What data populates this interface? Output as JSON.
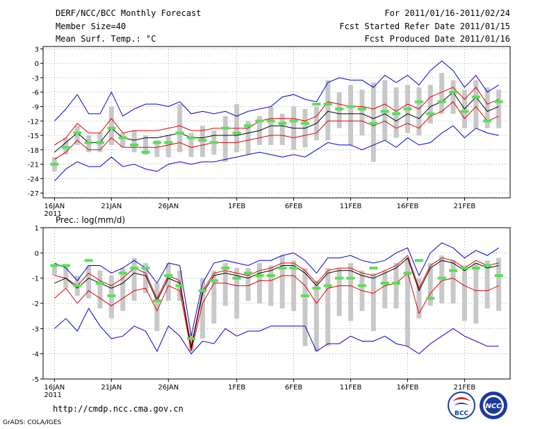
{
  "header": {
    "line1_left": "DERF/NCC/BCC Monthly Forecast",
    "line2_left": "Member Size=40",
    "line3_left": "Mean Surf. Temp.: °C",
    "line1_right": "For 2011/01/16-2011/02/24",
    "line2_right": "Fcst Started Refer Date 2011/01/15",
    "line3_right": "Fcst Produced Date 2011/01/16"
  },
  "footer": {
    "url": "http://cmdp.ncc.cma.gov.cn",
    "credit": "GrADS: COLA/IGES",
    "logo_bcc": "BCC",
    "logo_ncc": "NCC"
  },
  "colors": {
    "envelope": "#0000d0",
    "percentile": "#e00000",
    "mean": "#000000",
    "observed": "#55e055",
    "box": "#c8c8c8",
    "grid": "#909090"
  },
  "chart_data": [
    {
      "type": "line",
      "title": "Mean Surf. Temp.: °C",
      "xlabel": "",
      "ylabel": "",
      "ylim": [
        -28,
        3.5
      ],
      "yticks": [
        3,
        0,
        -3,
        -6,
        -9,
        -12,
        -15,
        -18,
        -21,
        -24,
        -27
      ],
      "xticks": [
        {
          "day": 1,
          "label": "16JAN",
          "sub": "2011"
        },
        {
          "day": 6,
          "label": "21JAN",
          "sub": ""
        },
        {
          "day": 11,
          "label": "26JAN",
          "sub": ""
        },
        {
          "day": 17,
          "label": "1FEB",
          "sub": ""
        },
        {
          "day": 22,
          "label": "6FEB",
          "sub": ""
        },
        {
          "day": 27,
          "label": "11FEB",
          "sub": ""
        },
        {
          "day": 32,
          "label": "16FEB",
          "sub": ""
        },
        {
          "day": 37,
          "label": "21FEB",
          "sub": ""
        }
      ],
      "days": [
        1,
        2,
        3,
        4,
        5,
        6,
        7,
        8,
        9,
        10,
        11,
        12,
        13,
        14,
        15,
        16,
        17,
        18,
        19,
        20,
        21,
        22,
        23,
        24,
        25,
        26,
        27,
        28,
        29,
        30,
        31,
        32,
        33,
        34,
        35,
        36,
        37,
        38,
        39,
        40
      ],
      "series": [
        {
          "name": "max",
          "role": "envelope",
          "values": [
            -12,
            -9.5,
            -6.5,
            -10.5,
            -10.5,
            -6,
            -11,
            -9.5,
            -8.5,
            -8.5,
            -9,
            -8,
            -10.5,
            -10,
            -10.5,
            -10,
            -11,
            -10,
            -9.5,
            -9,
            -7,
            -6.5,
            -7.5,
            -8,
            -4,
            -3,
            -3.5,
            -3.5,
            -5,
            -2.5,
            -4,
            -2.5,
            -4.5,
            -1.5,
            0.5,
            -1.5,
            -5,
            -2.5,
            -6,
            -4.5
          ]
        },
        {
          "name": "p75",
          "role": "percentile",
          "values": [
            -17,
            -15.5,
            -12.5,
            -14.5,
            -14.5,
            -11.5,
            -14.5,
            -14,
            -14,
            -14,
            -13.5,
            -13,
            -14,
            -14,
            -13.5,
            -13.5,
            -13.5,
            -13.5,
            -12,
            -11.5,
            -11.5,
            -11.5,
            -12,
            -11,
            -8,
            -8.5,
            -9,
            -9,
            -9.5,
            -8.5,
            -10,
            -8.5,
            -9.5,
            -7,
            -6,
            -5,
            -7.5,
            -5,
            -8.5,
            -7.5
          ]
        },
        {
          "name": "mean",
          "role": "mean",
          "values": [
            -18.5,
            -16.5,
            -14.5,
            -16.5,
            -16.5,
            -13.5,
            -15.5,
            -16,
            -15.5,
            -15.5,
            -15,
            -14.5,
            -15.5,
            -15.5,
            -15,
            -15,
            -15,
            -14.5,
            -14,
            -13,
            -13,
            -13.5,
            -13.5,
            -12.5,
            -10,
            -10.5,
            -10.5,
            -10.5,
            -11.5,
            -10.5,
            -12,
            -10.5,
            -11.5,
            -9,
            -8,
            -6,
            -9.5,
            -7,
            -10,
            -9
          ]
        },
        {
          "name": "p25",
          "role": "percentile",
          "values": [
            -20,
            -18.5,
            -16,
            -18,
            -18,
            -15.5,
            -17.5,
            -17.5,
            -17.5,
            -17.5,
            -17,
            -16.5,
            -17.5,
            -17,
            -16.5,
            -16.5,
            -16.5,
            -16,
            -15.5,
            -15,
            -15,
            -15.5,
            -15,
            -14.5,
            -12,
            -12,
            -12,
            -12,
            -13,
            -12,
            -13.5,
            -12.5,
            -13.5,
            -11,
            -10,
            -8,
            -11.5,
            -9,
            -12,
            -11
          ]
        },
        {
          "name": "min",
          "role": "envelope",
          "values": [
            -24.5,
            -22,
            -20.5,
            -21.5,
            -21.5,
            -19.5,
            -21.5,
            -21,
            -22,
            -22.5,
            -21,
            -20.5,
            -21,
            -20.5,
            -20.5,
            -20,
            -19.5,
            -19,
            -18.5,
            -19,
            -19.5,
            -19,
            -19.5,
            -18,
            -16.5,
            -17,
            -17,
            -18,
            -17,
            -16,
            -17.5,
            -15.5,
            -17,
            -16.5,
            -14.5,
            -13,
            -15.5,
            -13.5,
            -14.5,
            -15
          ]
        }
      ],
      "boxes": [
        {
          "day": 1,
          "lo": -22.5,
          "hi": -19.5
        },
        {
          "day": 2,
          "lo": -19,
          "hi": -15.5
        },
        {
          "day": 3,
          "lo": -17,
          "hi": -13
        },
        {
          "day": 4,
          "lo": -18.5,
          "hi": -15
        },
        {
          "day": 5,
          "lo": -18.5,
          "hi": -14.5
        },
        {
          "day": 6,
          "lo": -17,
          "hi": -9
        },
        {
          "day": 7,
          "lo": -17.5,
          "hi": -14.5
        },
        {
          "day": 8,
          "lo": -18.5,
          "hi": -14
        },
        {
          "day": 9,
          "lo": -19,
          "hi": -15
        },
        {
          "day": 10,
          "lo": -19.5,
          "hi": -16
        },
        {
          "day": 11,
          "lo": -19.5,
          "hi": -15
        },
        {
          "day": 12,
          "lo": -18.5,
          "hi": -8.5
        },
        {
          "day": 13,
          "lo": -19.5,
          "hi": -14.5
        },
        {
          "day": 14,
          "lo": -19.5,
          "hi": -13
        },
        {
          "day": 15,
          "lo": -19,
          "hi": -14
        },
        {
          "day": 16,
          "lo": -20.5,
          "hi": -11
        },
        {
          "day": 17,
          "lo": -18.5,
          "hi": -8.5
        },
        {
          "day": 18,
          "lo": -19,
          "hi": -12
        },
        {
          "day": 19,
          "lo": -17,
          "hi": -11
        },
        {
          "day": 20,
          "lo": -17,
          "hi": -9
        },
        {
          "day": 21,
          "lo": -17,
          "hi": -10.5
        },
        {
          "day": 22,
          "lo": -18,
          "hi": -9
        },
        {
          "day": 23,
          "lo": -17.5,
          "hi": -9.5
        },
        {
          "day": 24,
          "lo": -16,
          "hi": -9
        },
        {
          "day": 25,
          "lo": -16,
          "hi": -3.5
        },
        {
          "day": 26,
          "lo": -13.5,
          "hi": -6
        },
        {
          "day": 27,
          "lo": -17,
          "hi": -4.5
        },
        {
          "day": 28,
          "lo": -15,
          "hi": -5.5
        },
        {
          "day": 29,
          "lo": -20.5,
          "hi": -4
        },
        {
          "day": 30,
          "lo": -16,
          "hi": -3.5
        },
        {
          "day": 31,
          "lo": -15.5,
          "hi": -5
        },
        {
          "day": 32,
          "lo": -14.5,
          "hi": -4.5
        },
        {
          "day": 33,
          "lo": -15,
          "hi": -5
        },
        {
          "day": 34,
          "lo": -12.5,
          "hi": -4.5
        },
        {
          "day": 35,
          "lo": -10.5,
          "hi": -2
        },
        {
          "day": 36,
          "lo": -10.5,
          "hi": -3.5
        },
        {
          "day": 37,
          "lo": -13.5,
          "hi": -5.5
        },
        {
          "day": 38,
          "lo": -13.5,
          "hi": -3.5
        },
        {
          "day": 39,
          "lo": -13.5,
          "hi": -5
        },
        {
          "day": 40,
          "lo": -13.5,
          "hi": -5.5
        }
      ],
      "observed": [
        -21,
        -17.5,
        -14.5,
        -16.5,
        -16.5,
        -13.5,
        -15.5,
        -17,
        -18.5,
        -16.5,
        -16.5,
        -14.5,
        -15.5,
        -16,
        -16.5,
        -13.5,
        -14.5,
        -13,
        -12,
        -12,
        -12.5,
        -12,
        -12.5,
        -8.5,
        -8.5,
        -9.5,
        -9,
        -9.5,
        -12.5,
        -10,
        -10.5,
        -9.5,
        -8,
        -10.5,
        -8,
        -6,
        -10,
        -7,
        -12,
        -8
      ]
    },
    {
      "type": "line",
      "title": "Prec.: log(mm/d)",
      "xlabel": "",
      "ylabel": "",
      "ylim": [
        -5,
        1
      ],
      "yticks": [
        1,
        0,
        -1,
        -2,
        -3,
        -4,
        -5
      ],
      "xticks": [
        {
          "day": 1,
          "label": "16JAN",
          "sub": "2011"
        },
        {
          "day": 6,
          "label": "21JAN",
          "sub": ""
        },
        {
          "day": 11,
          "label": "26JAN",
          "sub": ""
        },
        {
          "day": 17,
          "label": "1FEB",
          "sub": ""
        },
        {
          "day": 22,
          "label": "6FEB",
          "sub": ""
        },
        {
          "day": 27,
          "label": "11FEB",
          "sub": ""
        },
        {
          "day": 32,
          "label": "16FEB",
          "sub": ""
        },
        {
          "day": 37,
          "label": "21FEB",
          "sub": ""
        }
      ],
      "days": [
        1,
        2,
        3,
        4,
        5,
        6,
        7,
        8,
        9,
        10,
        11,
        12,
        13,
        14,
        15,
        16,
        17,
        18,
        19,
        20,
        21,
        22,
        23,
        24,
        25,
        26,
        27,
        28,
        29,
        30,
        31,
        32,
        33,
        34,
        35,
        36,
        37,
        38,
        39,
        40
      ],
      "series": [
        {
          "name": "max",
          "role": "envelope",
          "values": [
            -0.4,
            -0.6,
            -1.1,
            -0.5,
            -0.5,
            -0.8,
            -0.6,
            -0.3,
            -0.6,
            -1.2,
            -0.4,
            -0.5,
            -3.3,
            -1.2,
            -0.4,
            -0.3,
            -0.4,
            -0.5,
            -0.3,
            -0.3,
            -0.1,
            0.0,
            -0.3,
            -0.8,
            -0.2,
            -0.2,
            -0.1,
            -0.3,
            -0.4,
            -0.3,
            0.0,
            0.2,
            -0.9,
            0.0,
            0.4,
            0.2,
            -0.2,
            0.1,
            -0.1,
            0.2
          ]
        },
        {
          "name": "p75",
          "role": "percentile",
          "values": [
            -0.9,
            -1.0,
            -1.3,
            -0.8,
            -1.1,
            -1.3,
            -1.0,
            -0.6,
            -0.8,
            -1.8,
            -0.9,
            -1.1,
            -3.7,
            -1.5,
            -0.8,
            -0.7,
            -0.8,
            -0.9,
            -0.7,
            -0.6,
            -0.4,
            -0.4,
            -0.7,
            -1.2,
            -0.7,
            -0.6,
            -0.6,
            -0.8,
            -0.9,
            -0.7,
            -0.5,
            -0.1,
            -1.4,
            -0.5,
            -0.2,
            -0.3,
            -0.6,
            -0.3,
            -0.5,
            -0.4
          ]
        },
        {
          "name": "mean",
          "role": "mean",
          "values": [
            -1.2,
            -1.0,
            -1.4,
            -1.0,
            -1.2,
            -1.4,
            -1.2,
            -0.8,
            -0.9,
            -1.9,
            -1.0,
            -1.2,
            -3.8,
            -1.6,
            -0.9,
            -0.8,
            -0.9,
            -1.0,
            -0.8,
            -0.7,
            -0.5,
            -0.5,
            -0.8,
            -1.3,
            -0.8,
            -0.7,
            -0.7,
            -0.9,
            -1.0,
            -0.8,
            -0.6,
            -0.2,
            -1.5,
            -0.6,
            -0.3,
            -0.4,
            -0.7,
            -0.4,
            -0.6,
            -0.5
          ]
        },
        {
          "name": "p25",
          "role": "percentile",
          "values": [
            -1.8,
            -1.4,
            -2.0,
            -1.5,
            -1.8,
            -2.1,
            -1.8,
            -1.5,
            -1.4,
            -2.3,
            -1.3,
            -1.5,
            -3.9,
            -2.0,
            -1.2,
            -1.2,
            -1.3,
            -1.3,
            -1.1,
            -1.1,
            -0.9,
            -0.9,
            -1.3,
            -2.0,
            -1.4,
            -1.3,
            -1.3,
            -1.5,
            -1.6,
            -1.3,
            -1.2,
            -0.8,
            -2.4,
            -1.6,
            -1.1,
            -1.0,
            -1.3,
            -1.5,
            -1.5,
            -1.3
          ]
        },
        {
          "name": "min",
          "role": "envelope",
          "values": [
            -3.0,
            -2.6,
            -3.1,
            -2.2,
            -2.9,
            -3.4,
            -3.3,
            -2.9,
            -3.1,
            -3.9,
            -2.9,
            -3.3,
            -4.0,
            -3.5,
            -3.6,
            -3.0,
            -3.3,
            -3.1,
            -3.1,
            -2.9,
            -2.9,
            -2.9,
            -2.9,
            -3.9,
            -3.6,
            -3.6,
            -3.3,
            -3.5,
            -3.5,
            -3.3,
            -3.6,
            -3.7,
            -4.0,
            -3.6,
            -3.3,
            -3.0,
            -3.3,
            -3.5,
            -3.7,
            -3.7
          ]
        }
      ],
      "boxes": [
        {
          "day": 1,
          "lo": -0.9,
          "hi": -0.5
        },
        {
          "day": 2,
          "lo": -1.4,
          "hi": -0.5
        },
        {
          "day": 3,
          "lo": -1.7,
          "hi": -0.9
        },
        {
          "day": 4,
          "lo": -1.8,
          "hi": -0.5
        },
        {
          "day": 5,
          "lo": -2.2,
          "hi": -0.7
        },
        {
          "day": 6,
          "lo": -2.6,
          "hi": -0.9
        },
        {
          "day": 7,
          "lo": -2.3,
          "hi": -0.6
        },
        {
          "day": 8,
          "lo": -1.9,
          "hi": -0.2
        },
        {
          "day": 9,
          "lo": -1.6,
          "hi": -0.4
        },
        {
          "day": 10,
          "lo": -3.1,
          "hi": -1.2
        },
        {
          "day": 11,
          "lo": -1.9,
          "hi": -0.4
        },
        {
          "day": 12,
          "lo": -1.9,
          "hi": -0.7
        },
        {
          "day": 13,
          "lo": -3.9,
          "hi": -3.2
        },
        {
          "day": 14,
          "lo": -3.4,
          "hi": -1.0
        },
        {
          "day": 15,
          "lo": -2.8,
          "hi": -0.7
        },
        {
          "day": 16,
          "lo": -2.1,
          "hi": -0.4
        },
        {
          "day": 17,
          "lo": -2.6,
          "hi": -0.6
        },
        {
          "day": 18,
          "lo": -1.9,
          "hi": -0.6
        },
        {
          "day": 19,
          "lo": -2.0,
          "hi": -0.4
        },
        {
          "day": 20,
          "lo": -2.1,
          "hi": -0.5
        },
        {
          "day": 21,
          "lo": -2.2,
          "hi": -0.1
        },
        {
          "day": 22,
          "lo": -2.3,
          "hi": -0.3
        },
        {
          "day": 23,
          "lo": -3.7,
          "hi": -0.6
        },
        {
          "day": 24,
          "lo": -3.9,
          "hi": -1.1
        },
        {
          "day": 25,
          "lo": -3.7,
          "hi": -0.6
        },
        {
          "day": 26,
          "lo": -2.5,
          "hi": -0.6
        },
        {
          "day": 27,
          "lo": -2.7,
          "hi": -0.4
        },
        {
          "day": 28,
          "lo": -2.3,
          "hi": -0.7
        },
        {
          "day": 29,
          "lo": -3.1,
          "hi": -0.8
        },
        {
          "day": 30,
          "lo": -2.2,
          "hi": -0.7
        },
        {
          "day": 31,
          "lo": -2.2,
          "hi": -0.4
        },
        {
          "day": 32,
          "lo": -3.7,
          "hi": -0.2
        },
        {
          "day": 33,
          "lo": -2.6,
          "hi": -1.0
        },
        {
          "day": 34,
          "lo": -2.1,
          "hi": -0.4
        },
        {
          "day": 35,
          "lo": -2.0,
          "hi": -0.1
        },
        {
          "day": 36,
          "lo": -2.0,
          "hi": -0.3
        },
        {
          "day": 37,
          "lo": -2.7,
          "hi": -0.5
        },
        {
          "day": 38,
          "lo": -2.8,
          "hi": -0.4
        },
        {
          "day": 39,
          "lo": -2.2,
          "hi": -0.3
        },
        {
          "day": 40,
          "lo": -2.3,
          "hi": -0.2
        }
      ],
      "observed": [
        -0.5,
        -0.5,
        -1.3,
        -0.3,
        -1.2,
        -1.7,
        -0.8,
        -0.6,
        -0.6,
        -1.9,
        -0.9,
        -1.3,
        -3.4,
        -1.5,
        -1.1,
        -0.6,
        -1.0,
        -0.8,
        -0.9,
        -0.9,
        -0.6,
        -0.6,
        -1.7,
        -1.4,
        -1.3,
        -1.0,
        -1.0,
        -1.3,
        -0.6,
        -1.2,
        -1.2,
        -0.8,
        -0.3,
        -1.8,
        -1.0,
        -0.7,
        -0.6,
        -0.6,
        -0.5,
        -0.9
      ]
    }
  ]
}
